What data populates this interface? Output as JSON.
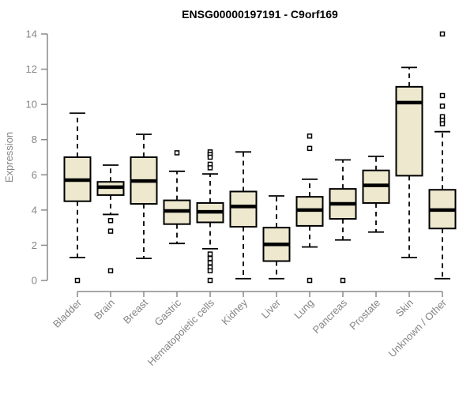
{
  "page": {
    "background": "#ffffff"
  },
  "chart_data": {
    "type": "boxplot",
    "title": "ENSG00000197191 - C9orf169",
    "ylabel": "Expression",
    "xlabel": "",
    "ylim": [
      0,
      14
    ],
    "yticks": [
      0,
      2,
      4,
      6,
      8,
      10,
      12,
      14
    ],
    "grid": false,
    "legend": false,
    "categories": [
      "Bladder",
      "Brain",
      "Breast",
      "Gastric",
      "Hematopoietic cells",
      "Kidney",
      "Liver",
      "Lung",
      "Pancreas",
      "Prostate",
      "Skin",
      "Unknown / Other"
    ],
    "series": [
      {
        "name": "Bladder",
        "low": 1.3,
        "q1": 4.5,
        "median": 5.7,
        "q3": 7.0,
        "high": 9.5,
        "outliers": [
          0
        ]
      },
      {
        "name": "Brain",
        "low": 3.75,
        "q1": 4.85,
        "median": 5.3,
        "q3": 5.6,
        "high": 6.55,
        "outliers": [
          3.4,
          2.8,
          0.55
        ]
      },
      {
        "name": "Breast",
        "low": 1.25,
        "q1": 4.35,
        "median": 5.65,
        "q3": 7.0,
        "high": 8.3,
        "outliers": []
      },
      {
        "name": "Gastric",
        "low": 2.1,
        "q1": 3.2,
        "median": 3.95,
        "q3": 4.55,
        "high": 6.2,
        "outliers": [
          7.25
        ]
      },
      {
        "name": "Hematopoietic cells",
        "low": 1.8,
        "q1": 3.3,
        "median": 3.9,
        "q3": 4.4,
        "high": 6.05,
        "outliers": [
          7.3,
          7.15,
          7.0,
          6.6,
          6.4,
          1.5,
          1.25,
          1.0,
          0.75,
          0.55,
          0
        ]
      },
      {
        "name": "Kidney",
        "low": 0.1,
        "q1": 3.05,
        "median": 4.2,
        "q3": 5.05,
        "high": 7.3,
        "outliers": []
      },
      {
        "name": "Liver",
        "low": 0.1,
        "q1": 1.1,
        "median": 2.05,
        "q3": 3.0,
        "high": 4.8,
        "outliers": []
      },
      {
        "name": "Lung",
        "low": 1.9,
        "q1": 3.1,
        "median": 4.0,
        "q3": 4.75,
        "high": 5.75,
        "outliers": [
          8.2,
          7.5,
          0
        ]
      },
      {
        "name": "Pancreas",
        "low": 2.3,
        "q1": 3.5,
        "median": 4.35,
        "q3": 5.2,
        "high": 6.85,
        "outliers": [
          0
        ]
      },
      {
        "name": "Prostate",
        "low": 2.75,
        "q1": 4.4,
        "median": 5.4,
        "q3": 6.25,
        "high": 7.05,
        "outliers": []
      },
      {
        "name": "Skin",
        "low": 1.3,
        "q1": 5.95,
        "median": 10.1,
        "q3": 11.0,
        "high": 12.1,
        "outliers": []
      },
      {
        "name": "Unknown / Other",
        "low": 0.1,
        "q1": 2.95,
        "median": 4.0,
        "q3": 5.15,
        "high": 8.45,
        "outliers": [
          14.0,
          10.5,
          9.9,
          9.3,
          9.1,
          8.9
        ]
      }
    ],
    "colors": {
      "box_fill": "#ede8ce",
      "box_stroke": "#000000",
      "median": "#000000",
      "whisker": "#000000",
      "outlier_fill": "#ffffff",
      "outlier_stroke": "#000000",
      "axis": "#8a8a8a",
      "tick_label": "#858585",
      "title": "#000000"
    }
  }
}
